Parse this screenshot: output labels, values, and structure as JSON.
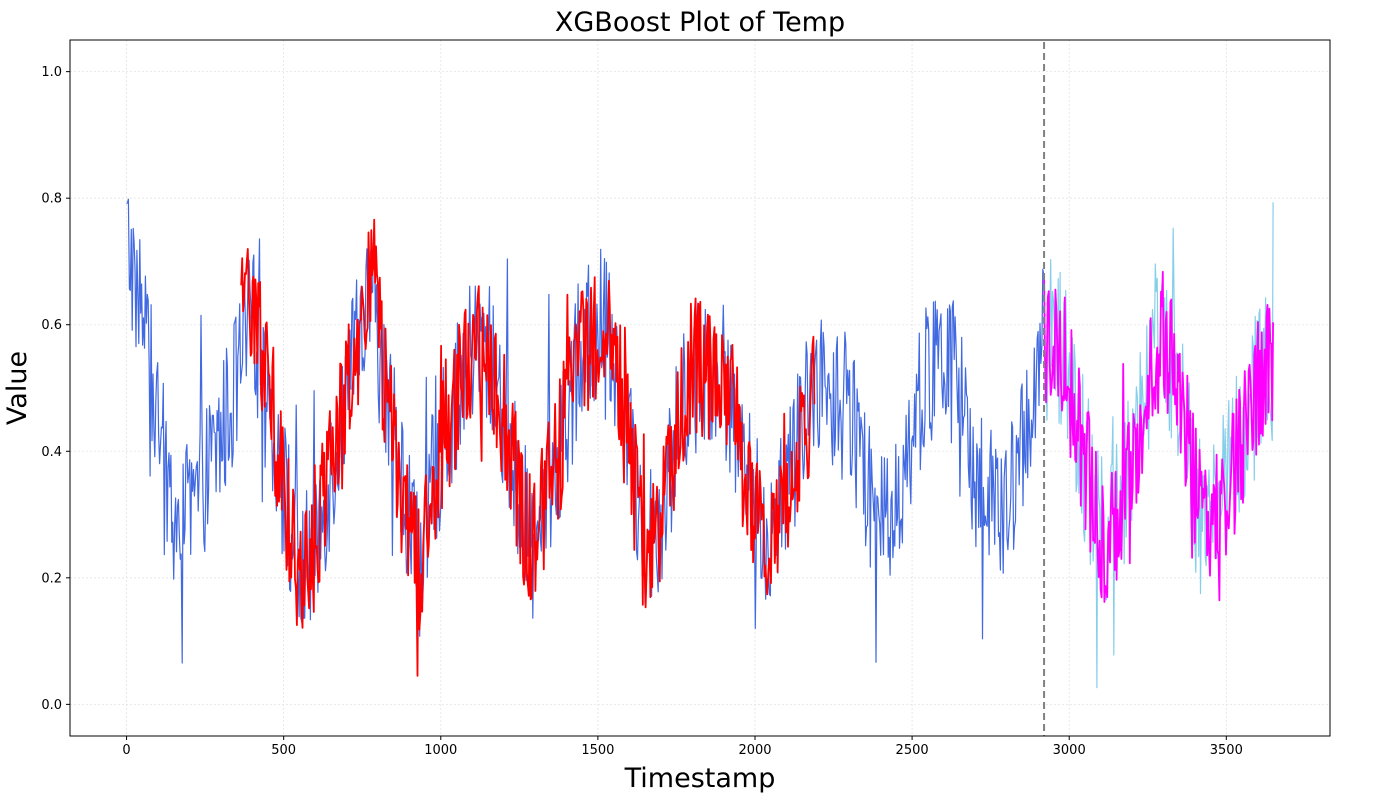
{
  "chart_data": {
    "type": "line",
    "title": "XGBoost Plot of Temp",
    "xlabel": "Timestamp",
    "ylabel": "Value",
    "xlim": [
      -180,
      3830
    ],
    "ylim": [
      -0.05,
      1.05
    ],
    "x_ticks": [
      0,
      500,
      1000,
      1500,
      2000,
      2500,
      3000,
      3500
    ],
    "y_ticks": [
      0.0,
      0.2,
      0.4,
      0.6,
      0.8,
      1.0
    ],
    "x_tick_labels": [
      "0",
      "500",
      "1000",
      "1500",
      "2000",
      "2500",
      "3000",
      "3500"
    ],
    "y_tick_labels": [
      "0.0",
      "0.2",
      "0.4",
      "0.6",
      "0.8",
      "1.0"
    ],
    "grid": true,
    "split_x": 2920,
    "series": [
      {
        "color": "#4169e1",
        "x_start": 0,
        "x_end": 2920,
        "trend": [
          [
            0,
            0.74
          ],
          [
            50,
            0.62
          ],
          [
            100,
            0.44
          ],
          [
            150,
            0.3
          ],
          [
            200,
            0.29
          ],
          [
            270,
            0.38
          ],
          [
            330,
            0.47
          ],
          [
            400,
            0.61
          ],
          [
            450,
            0.5
          ],
          [
            500,
            0.34
          ],
          [
            550,
            0.2
          ],
          [
            600,
            0.25
          ],
          [
            700,
            0.48
          ],
          [
            780,
            0.66
          ],
          [
            820,
            0.5
          ],
          [
            880,
            0.35
          ],
          [
            930,
            0.22
          ],
          [
            1000,
            0.4
          ],
          [
            1100,
            0.56
          ],
          [
            1160,
            0.55
          ],
          [
            1250,
            0.33
          ],
          [
            1290,
            0.25
          ],
          [
            1350,
            0.35
          ],
          [
            1450,
            0.56
          ],
          [
            1530,
            0.62
          ],
          [
            1600,
            0.4
          ],
          [
            1650,
            0.27
          ],
          [
            1700,
            0.3
          ],
          [
            1800,
            0.54
          ],
          [
            1900,
            0.52
          ],
          [
            2000,
            0.31
          ],
          [
            2050,
            0.26
          ],
          [
            2150,
            0.43
          ],
          [
            2200,
            0.52
          ],
          [
            2300,
            0.46
          ],
          [
            2400,
            0.27
          ],
          [
            2450,
            0.33
          ],
          [
            2550,
            0.53
          ],
          [
            2650,
            0.52
          ],
          [
            2700,
            0.35
          ],
          [
            2800,
            0.29
          ],
          [
            2920,
            0.58
          ]
        ],
        "noise": 0.12
      },
      {
        "color": "#ff0000",
        "x_start": 365,
        "x_end": 2190,
        "trend": [
          [
            365,
            0.6
          ],
          [
            400,
            0.66
          ],
          [
            450,
            0.52
          ],
          [
            500,
            0.34
          ],
          [
            550,
            0.2
          ],
          [
            600,
            0.25
          ],
          [
            700,
            0.48
          ],
          [
            780,
            0.7
          ],
          [
            820,
            0.5
          ],
          [
            880,
            0.33
          ],
          [
            930,
            0.2
          ],
          [
            1000,
            0.4
          ],
          [
            1100,
            0.56
          ],
          [
            1160,
            0.55
          ],
          [
            1250,
            0.33
          ],
          [
            1290,
            0.24
          ],
          [
            1350,
            0.35
          ],
          [
            1450,
            0.56
          ],
          [
            1530,
            0.62
          ],
          [
            1600,
            0.4
          ],
          [
            1650,
            0.24
          ],
          [
            1700,
            0.3
          ],
          [
            1800,
            0.54
          ],
          [
            1900,
            0.52
          ],
          [
            2000,
            0.3
          ],
          [
            2050,
            0.25
          ],
          [
            2150,
            0.43
          ],
          [
            2190,
            0.5
          ]
        ],
        "noise": 0.11
      },
      {
        "color": "#87ceeb",
        "x_start": 2920,
        "x_end": 3650,
        "trend": [
          [
            2920,
            0.58
          ],
          [
            2980,
            0.56
          ],
          [
            3050,
            0.38
          ],
          [
            3100,
            0.26
          ],
          [
            3150,
            0.3
          ],
          [
            3250,
            0.5
          ],
          [
            3300,
            0.58
          ],
          [
            3350,
            0.5
          ],
          [
            3420,
            0.28
          ],
          [
            3500,
            0.34
          ],
          [
            3600,
            0.5
          ],
          [
            3650,
            0.55
          ]
        ],
        "noise": 0.13
      },
      {
        "color": "#ff00ff",
        "x_start": 2920,
        "x_end": 3650,
        "trend": [
          [
            2920,
            0.58
          ],
          [
            2980,
            0.56
          ],
          [
            3050,
            0.38
          ],
          [
            3100,
            0.26
          ],
          [
            3150,
            0.3
          ],
          [
            3250,
            0.5
          ],
          [
            3300,
            0.58
          ],
          [
            3350,
            0.5
          ],
          [
            3420,
            0.28
          ],
          [
            3500,
            0.34
          ],
          [
            3600,
            0.5
          ],
          [
            3650,
            0.55
          ]
        ],
        "noise": 0.11
      }
    ]
  }
}
